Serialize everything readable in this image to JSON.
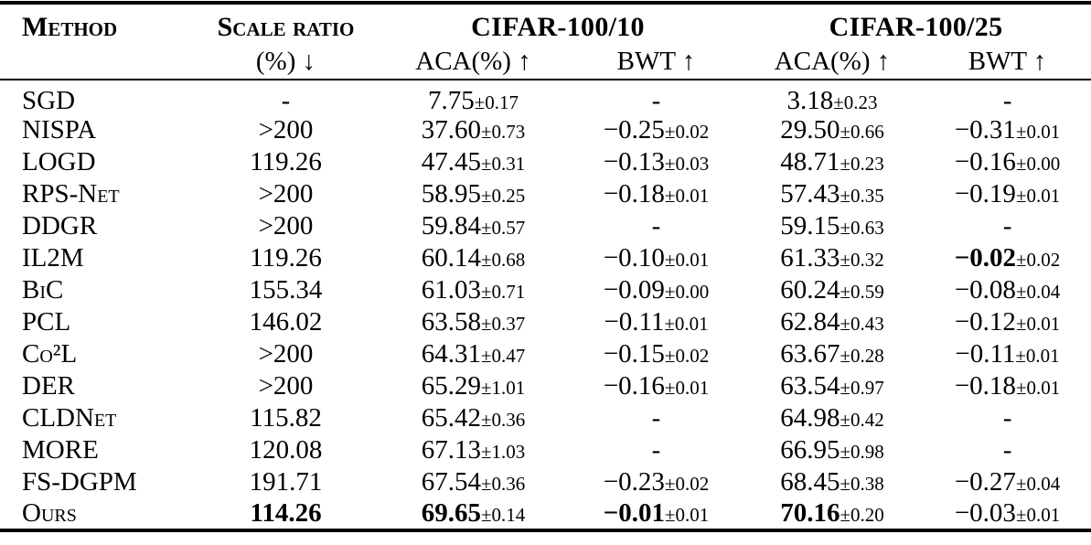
{
  "page": {
    "background_color": "#ffffff",
    "text_color": "#000000"
  },
  "table": {
    "headers": {
      "method": "Method",
      "scale_line1": "Scale ratio",
      "scale_line2": "(%) ↓",
      "group_cifar10": "CIFAR-100/10",
      "group_cifar25": "CIFAR-100/25",
      "aca10": "ACA(%) ↑",
      "bwt10": "BWT ↑",
      "aca25": "ACA(%) ↑",
      "bwt25": "BWT ↑"
    },
    "rows": [
      {
        "method": "SGD",
        "scale": {
          "v": "-"
        },
        "aca10": {
          "v": "7.75",
          "pm": "±0.17"
        },
        "bwt10": {
          "v": "-"
        },
        "aca25": {
          "v": "3.18",
          "pm": "±0.23"
        },
        "bwt25": {
          "v": "-"
        }
      },
      {
        "method": "NISPA",
        "scale": {
          "v": ">200"
        },
        "aca10": {
          "v": "37.60",
          "pm": "±0.73"
        },
        "bwt10": {
          "v": "−0.25",
          "pm": "±0.02"
        },
        "aca25": {
          "v": "29.50",
          "pm": "±0.66"
        },
        "bwt25": {
          "v": "−0.31",
          "pm": "±0.01"
        }
      },
      {
        "method": "LOGD",
        "scale": {
          "v": "119.26"
        },
        "aca10": {
          "v": "47.45",
          "pm": "±0.31"
        },
        "bwt10": {
          "v": "−0.13",
          "pm": "±0.03"
        },
        "aca25": {
          "v": "48.71",
          "pm": "±0.23"
        },
        "bwt25": {
          "v": "−0.16",
          "pm": "±0.00"
        }
      },
      {
        "method": "RPS-Net",
        "scale": {
          "v": ">200"
        },
        "aca10": {
          "v": "58.95",
          "pm": "±0.25"
        },
        "bwt10": {
          "v": "−0.18",
          "pm": "±0.01"
        },
        "aca25": {
          "v": "57.43",
          "pm": "±0.35"
        },
        "bwt25": {
          "v": "−0.19",
          "pm": "±0.01"
        }
      },
      {
        "method": "DDGR",
        "scale": {
          "v": ">200"
        },
        "aca10": {
          "v": "59.84",
          "pm": "±0.57"
        },
        "bwt10": {
          "v": "-"
        },
        "aca25": {
          "v": "59.15",
          "pm": "±0.63"
        },
        "bwt25": {
          "v": "-"
        }
      },
      {
        "method": "IL2M",
        "scale": {
          "v": "119.26"
        },
        "aca10": {
          "v": "60.14",
          "pm": "±0.68"
        },
        "bwt10": {
          "v": "−0.10",
          "pm": "±0.01"
        },
        "aca25": {
          "v": "61.33",
          "pm": "±0.32"
        },
        "bwt25": {
          "v": "−0.02",
          "pm": "±0.02",
          "bold": true
        }
      },
      {
        "method": "BiC",
        "scale": {
          "v": "155.34"
        },
        "aca10": {
          "v": "61.03",
          "pm": "±0.71"
        },
        "bwt10": {
          "v": "−0.09",
          "pm": "±0.00"
        },
        "aca25": {
          "v": "60.24",
          "pm": "±0.59"
        },
        "bwt25": {
          "v": "−0.08",
          "pm": "±0.04"
        }
      },
      {
        "method": "PCL",
        "scale": {
          "v": "146.02"
        },
        "aca10": {
          "v": "63.58",
          "pm": "±0.37"
        },
        "bwt10": {
          "v": "−0.11",
          "pm": "±0.01"
        },
        "aca25": {
          "v": "62.84",
          "pm": "±0.43"
        },
        "bwt25": {
          "v": "−0.12",
          "pm": "±0.01"
        }
      },
      {
        "method": "Co²L",
        "scale": {
          "v": ">200"
        },
        "aca10": {
          "v": "64.31",
          "pm": "±0.47"
        },
        "bwt10": {
          "v": "−0.15",
          "pm": "±0.02"
        },
        "aca25": {
          "v": "63.67",
          "pm": "±0.28"
        },
        "bwt25": {
          "v": "−0.11",
          "pm": "±0.01"
        }
      },
      {
        "method": "DER",
        "scale": {
          "v": ">200"
        },
        "aca10": {
          "v": "65.29",
          "pm": "±1.01"
        },
        "bwt10": {
          "v": "−0.16",
          "pm": "±0.01"
        },
        "aca25": {
          "v": "63.54",
          "pm": "±0.97"
        },
        "bwt25": {
          "v": "−0.18",
          "pm": "±0.01"
        }
      },
      {
        "method": "CLDNet",
        "scale": {
          "v": "115.82"
        },
        "aca10": {
          "v": "65.42",
          "pm": "±0.36"
        },
        "bwt10": {
          "v": "-"
        },
        "aca25": {
          "v": "64.98",
          "pm": "±0.42"
        },
        "bwt25": {
          "v": "-"
        }
      },
      {
        "method": "MORE",
        "scale": {
          "v": "120.08"
        },
        "aca10": {
          "v": "67.13",
          "pm": "±1.03"
        },
        "bwt10": {
          "v": "-"
        },
        "aca25": {
          "v": "66.95",
          "pm": "±0.98"
        },
        "bwt25": {
          "v": "-"
        }
      },
      {
        "method": "FS-DGPM",
        "scale": {
          "v": "191.71"
        },
        "aca10": {
          "v": "67.54",
          "pm": "±0.36"
        },
        "bwt10": {
          "v": "−0.23",
          "pm": "±0.02"
        },
        "aca25": {
          "v": "68.45",
          "pm": "±0.38"
        },
        "bwt25": {
          "v": "−0.27",
          "pm": "±0.04"
        }
      },
      {
        "method": "Ours",
        "scale": {
          "v": "114.26",
          "bold": true
        },
        "aca10": {
          "v": "69.65",
          "pm": "±0.14",
          "bold": true
        },
        "bwt10": {
          "v": "−0.01",
          "pm": "±0.01",
          "bold": true
        },
        "aca25": {
          "v": "70.16",
          "pm": "±0.20",
          "bold": true
        },
        "bwt25": {
          "v": "−0.03",
          "pm": "±0.01"
        }
      }
    ]
  }
}
